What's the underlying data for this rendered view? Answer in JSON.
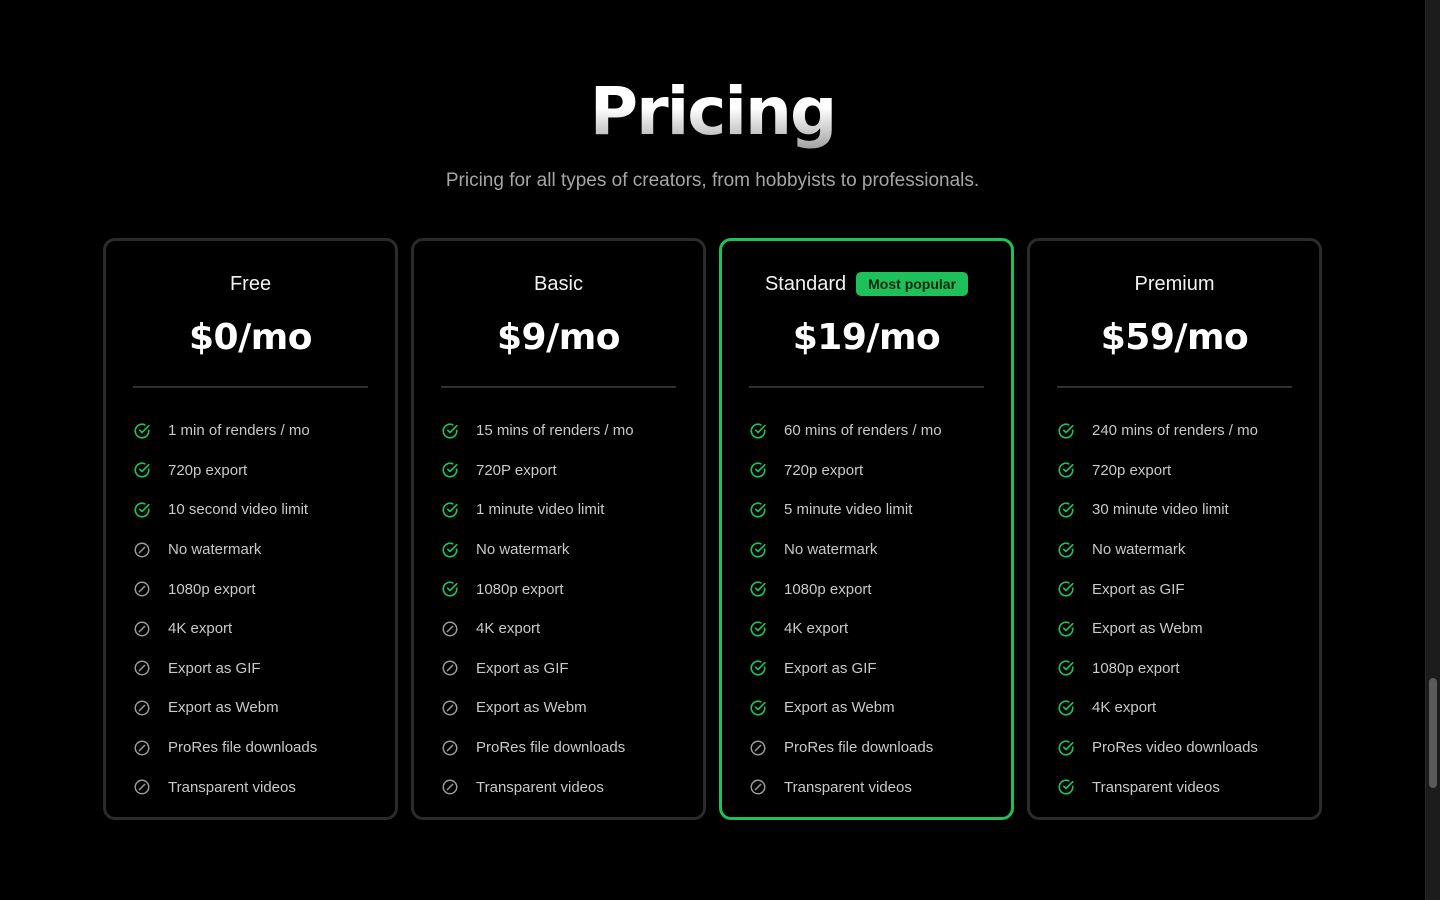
{
  "header": {
    "title": "Pricing",
    "subtitle": "Pricing for all types of creators, from hobbyists to professionals."
  },
  "colors": {
    "accent": "#1ec05a",
    "included_icon": "#1ec05a",
    "excluded_icon": "#9a9a9a"
  },
  "plans": [
    {
      "name": "Free",
      "price": "$0/mo",
      "badge": "",
      "highlighted": false,
      "features": [
        {
          "label": "1 min of renders / mo",
          "included": true
        },
        {
          "label": "720p export",
          "included": true
        },
        {
          "label": "10 second video limit",
          "included": true
        },
        {
          "label": "No watermark",
          "included": false
        },
        {
          "label": "1080p export",
          "included": false
        },
        {
          "label": "4K export",
          "included": false
        },
        {
          "label": "Export as GIF",
          "included": false
        },
        {
          "label": "Export as Webm",
          "included": false
        },
        {
          "label": "ProRes file downloads",
          "included": false
        },
        {
          "label": "Transparent videos",
          "included": false
        }
      ]
    },
    {
      "name": "Basic",
      "price": "$9/mo",
      "badge": "",
      "highlighted": false,
      "features": [
        {
          "label": "15 mins of renders / mo",
          "included": true
        },
        {
          "label": "720P export",
          "included": true
        },
        {
          "label": "1 minute video limit",
          "included": true
        },
        {
          "label": "No watermark",
          "included": true
        },
        {
          "label": "1080p export",
          "included": true
        },
        {
          "label": "4K export",
          "included": false
        },
        {
          "label": "Export as GIF",
          "included": false
        },
        {
          "label": "Export as Webm",
          "included": false
        },
        {
          "label": "ProRes file downloads",
          "included": false
        },
        {
          "label": "Transparent videos",
          "included": false
        }
      ]
    },
    {
      "name": "Standard",
      "price": "$19/mo",
      "badge": "Most popular",
      "highlighted": true,
      "features": [
        {
          "label": "60 mins of renders / mo",
          "included": true
        },
        {
          "label": "720p export",
          "included": true
        },
        {
          "label": "5 minute video limit",
          "included": true
        },
        {
          "label": "No watermark",
          "included": true
        },
        {
          "label": "1080p export",
          "included": true
        },
        {
          "label": "4K export",
          "included": true
        },
        {
          "label": "Export as GIF",
          "included": true
        },
        {
          "label": "Export as Webm",
          "included": true
        },
        {
          "label": "ProRes file downloads",
          "included": false
        },
        {
          "label": "Transparent videos",
          "included": false
        }
      ]
    },
    {
      "name": "Premium",
      "price": "$59/mo",
      "badge": "",
      "highlighted": false,
      "features": [
        {
          "label": "240 mins of renders / mo",
          "included": true
        },
        {
          "label": "720p export",
          "included": true
        },
        {
          "label": "30 minute video limit",
          "included": true
        },
        {
          "label": "No watermark",
          "included": true
        },
        {
          "label": "Export as GIF",
          "included": true
        },
        {
          "label": "Export as Webm",
          "included": true
        },
        {
          "label": "1080p export",
          "included": true
        },
        {
          "label": "4K export",
          "included": true
        },
        {
          "label": "ProRes video downloads",
          "included": true
        },
        {
          "label": "Transparent videos",
          "included": true
        }
      ]
    }
  ]
}
